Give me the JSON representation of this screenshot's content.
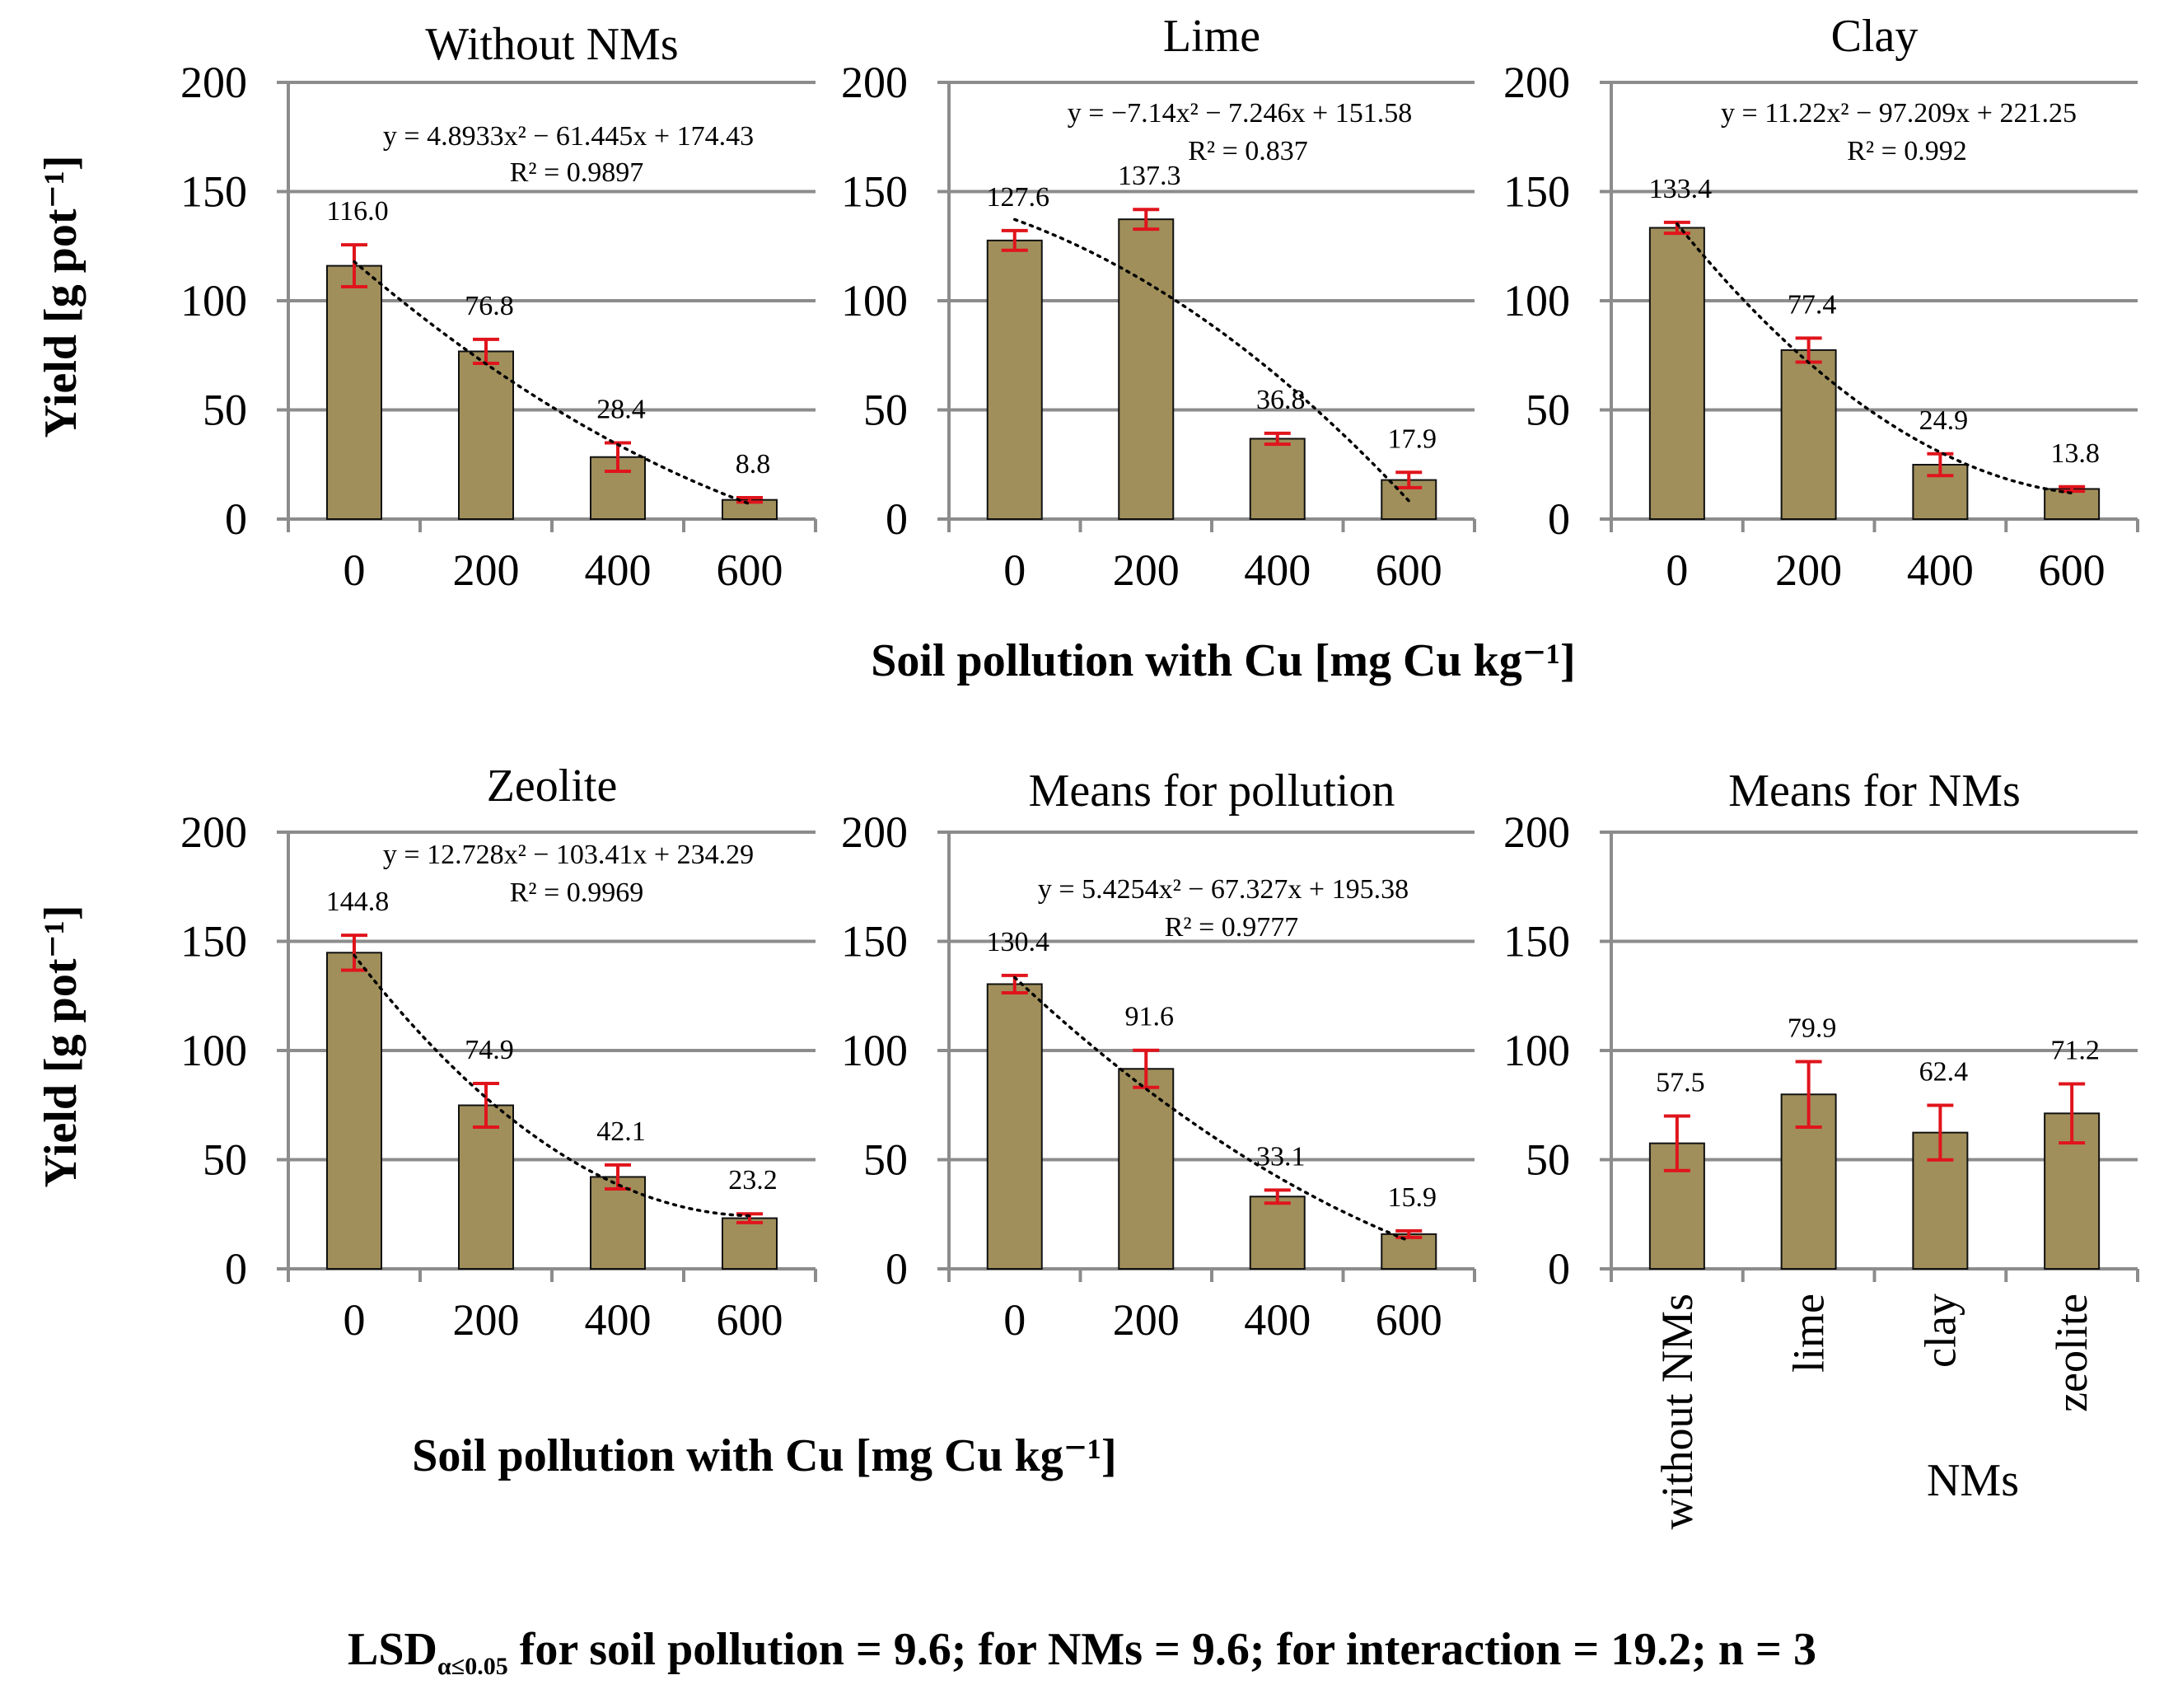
{
  "y_axis_label": "Yield [g pot⁻¹]",
  "x_axis_label_top": "Soil pollution with Cu [mg Cu kg⁻¹]",
  "x_axis_label_bottom": "Soil pollution with Cu [mg Cu kg⁻¹]",
  "nms_axis_label": "NMs",
  "footer": {
    "lsd_prefix": "LSD",
    "lsd_subscript": "α≤0.05",
    "text": "  for soil pollution = 9.6; for NMs = 9.6; for interaction = 19.2; n = 3"
  },
  "colors": {
    "bar": "#a08f5b",
    "error_bar": "#e0141c",
    "grid": "#8c8c8c",
    "trend": "#000000"
  },
  "chart_data": [
    {
      "id": "without-nms",
      "type": "bar",
      "title": "Without NMs",
      "categories": [
        "0",
        "200",
        "400",
        "600"
      ],
      "values": [
        116.0,
        76.8,
        28.4,
        8.8
      ],
      "value_labels": [
        "116.0",
        "76.8",
        "28.4",
        "8.8"
      ],
      "errors": [
        9.6,
        5.5,
        6.5,
        1.0
      ],
      "ylim": [
        0,
        200
      ],
      "yticks": [
        "0",
        "50",
        "100",
        "150",
        "200"
      ],
      "equation": "y = 4.8933x² − 61.445x + 174.43",
      "r2": "R² = 0.9897",
      "trend": [
        4.8933,
        -61.445,
        174.43
      ]
    },
    {
      "id": "lime",
      "type": "bar",
      "title": "Lime",
      "categories": [
        "0",
        "200",
        "400",
        "600"
      ],
      "values": [
        127.6,
        137.3,
        36.8,
        17.9
      ],
      "value_labels": [
        "127.6",
        "137.3",
        "36.8",
        "17.9"
      ],
      "errors": [
        4.5,
        4.5,
        2.5,
        3.5
      ],
      "ylim": [
        0,
        200
      ],
      "yticks": [
        "0",
        "50",
        "100",
        "150",
        "200"
      ],
      "equation": "y = −7.14x² − 7.246x + 151.58",
      "r2": "R² = 0.837",
      "trend": [
        -7.14,
        -7.246,
        151.58
      ]
    },
    {
      "id": "clay",
      "type": "bar",
      "title": "Clay",
      "categories": [
        "0",
        "200",
        "400",
        "600"
      ],
      "values": [
        133.4,
        77.4,
        24.9,
        13.8
      ],
      "value_labels": [
        "133.4",
        "77.4",
        "24.9",
        "13.8"
      ],
      "errors": [
        2.5,
        5.5,
        5.0,
        1.0
      ],
      "ylim": [
        0,
        200
      ],
      "yticks": [
        "0",
        "50",
        "100",
        "150",
        "200"
      ],
      "equation": "y = 11.22x² − 97.209x + 221.25",
      "r2": "R² = 0.992",
      "trend": [
        11.22,
        -97.209,
        221.25
      ]
    },
    {
      "id": "zeolite",
      "type": "bar",
      "title": "Zeolite",
      "categories": [
        "0",
        "200",
        "400",
        "600"
      ],
      "values": [
        144.8,
        74.9,
        42.1,
        23.2
      ],
      "value_labels": [
        "144.8",
        "74.9",
        "42.1",
        "23.2"
      ],
      "errors": [
        8.0,
        10.0,
        5.5,
        2.0
      ],
      "ylim": [
        0,
        200
      ],
      "yticks": [
        "0",
        "50",
        "100",
        "150",
        "200"
      ],
      "equation": "y = 12.728x² − 103.41x + 234.29",
      "r2": "R² = 0.9969",
      "trend": [
        12.728,
        -103.41,
        234.29
      ]
    },
    {
      "id": "means-pollution",
      "type": "bar",
      "title": "Means for pollution",
      "categories": [
        "0",
        "200",
        "400",
        "600"
      ],
      "values": [
        130.4,
        91.6,
        33.1,
        15.9
      ],
      "value_labels": [
        "130.4",
        "91.6",
        "33.1",
        "15.9"
      ],
      "errors": [
        4.0,
        8.5,
        3.0,
        1.5
      ],
      "ylim": [
        0,
        200
      ],
      "yticks": [
        "0",
        "50",
        "100",
        "150",
        "200"
      ],
      "equation": "y = 5.4254x² − 67.327x + 195.38",
      "r2": "R² = 0.9777",
      "trend": [
        5.4254,
        -67.327,
        195.38
      ]
    },
    {
      "id": "means-nms",
      "type": "bar",
      "title": "Means for NMs",
      "categories": [
        "without NMs",
        "lime",
        "clay",
        "zeolite"
      ],
      "values": [
        57.5,
        79.9,
        62.4,
        71.2
      ],
      "value_labels": [
        "57.5",
        "79.9",
        "62.4",
        "71.2"
      ],
      "errors": [
        12.5,
        15.0,
        12.5,
        13.5
      ],
      "ylim": [
        0,
        200
      ],
      "yticks": [
        "0",
        "50",
        "100",
        "150",
        "200"
      ],
      "xlabel": "NMs"
    }
  ]
}
